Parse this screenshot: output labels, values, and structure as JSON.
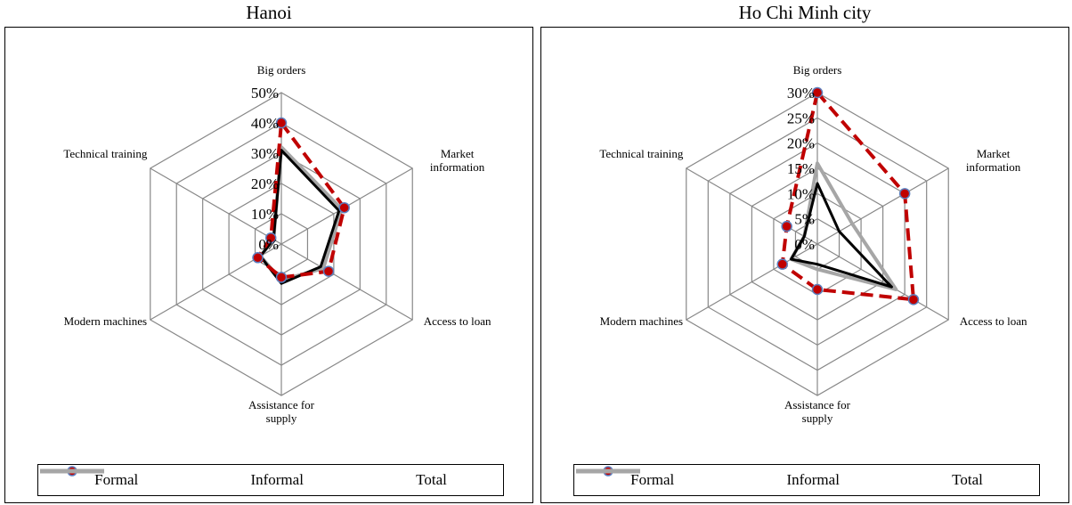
{
  "chart_data": [
    {
      "type": "radar",
      "title": "Hanoi",
      "categories": [
        "Big orders",
        "Market information",
        "Access to loan",
        "Assistance for supply",
        "Modern machines",
        "Technical training"
      ],
      "ylim": [
        0,
        50
      ],
      "yticks": [
        {
          "value": 0,
          "label": "0%"
        },
        {
          "value": 10,
          "label": "10%"
        },
        {
          "value": 20,
          "label": "20%"
        },
        {
          "value": 30,
          "label": "30%"
        },
        {
          "value": 40,
          "label": "40%"
        },
        {
          "value": 50,
          "label": "50%"
        }
      ],
      "grid": true,
      "series": [
        {
          "name": "Formal",
          "color": "#c00000",
          "line_style": "dashed",
          "marker": true,
          "values": [
            40,
            24,
            18,
            11,
            9,
            4
          ]
        },
        {
          "name": "Informal",
          "color": "#000000",
          "line_style": "solid",
          "marker": false,
          "values": [
            31,
            22,
            15,
            13,
            8,
            3
          ]
        },
        {
          "name": "Total",
          "color": "#a6a6a6",
          "line_style": "solid",
          "marker": false,
          "values": [
            32,
            23,
            16,
            12,
            8,
            3
          ]
        }
      ]
    },
    {
      "type": "radar",
      "title": "Ho Chi Minh city",
      "categories": [
        "Big orders",
        "Market information",
        "Access to loan",
        "Assistance for supply",
        "Modern machines",
        "Technical training"
      ],
      "ylim": [
        0,
        30
      ],
      "yticks": [
        {
          "value": 0,
          "label": "0%"
        },
        {
          "value": 5,
          "label": "5%"
        },
        {
          "value": 10,
          "label": "10%"
        },
        {
          "value": 15,
          "label": "15%"
        },
        {
          "value": 20,
          "label": "20%"
        },
        {
          "value": 25,
          "label": "25%"
        },
        {
          "value": 30,
          "label": "30%"
        }
      ],
      "grid": true,
      "series": [
        {
          "name": "Formal",
          "color": "#c00000",
          "line_style": "dashed",
          "marker": true,
          "values": [
            30,
            20,
            22,
            9,
            8,
            7
          ]
        },
        {
          "name": "Informal",
          "color": "#000000",
          "line_style": "solid",
          "marker": false,
          "values": [
            12,
            5,
            17,
            4,
            6,
            3
          ]
        },
        {
          "name": "Total",
          "color": "#a6a6a6",
          "line_style": "solid",
          "marker": false,
          "values": [
            16,
            8,
            18,
            5,
            6,
            3
          ]
        }
      ]
    }
  ]
}
